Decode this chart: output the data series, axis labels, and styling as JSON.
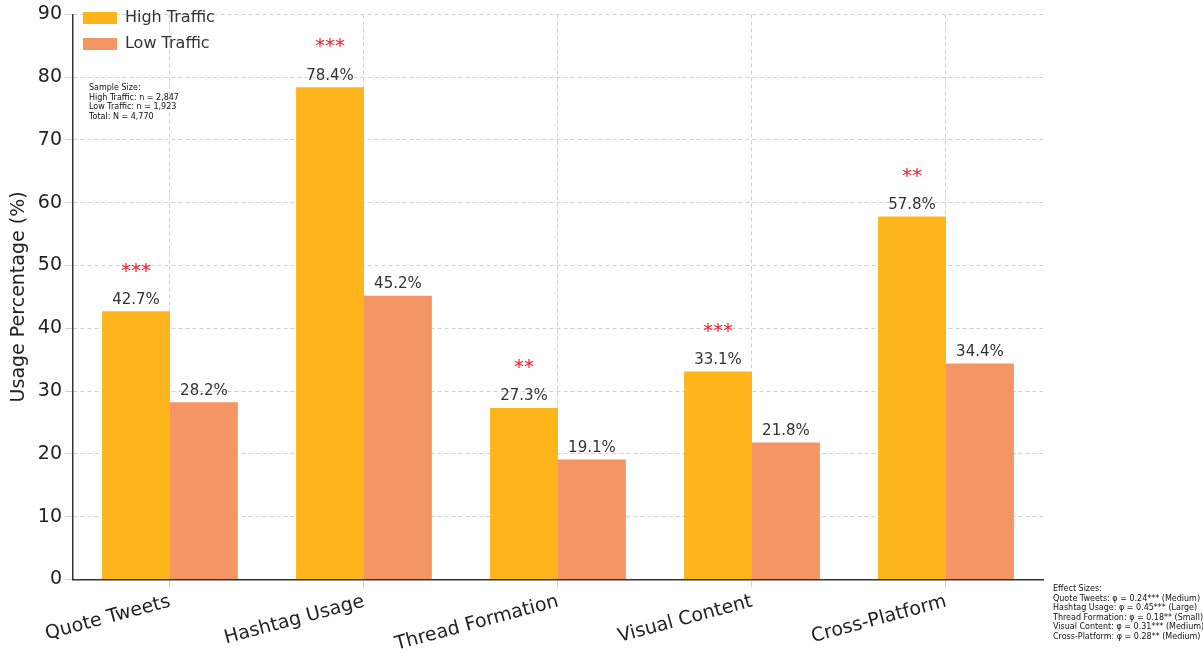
{
  "chart_data": {
    "type": "bar",
    "ylabel": "Usage Percentage (%)",
    "categories": [
      "Quote Tweets",
      "Hashtag Usage",
      "Thread Formation",
      "Visual Content",
      "Cross-Platform"
    ],
    "series": [
      {
        "name": "High Traffic",
        "color": "#fdb51b",
        "values": [
          42.7,
          78.4,
          27.3,
          33.1,
          57.8
        ],
        "value_labels": [
          "42.7%",
          "78.4%",
          "27.3%",
          "33.1%",
          "57.8%"
        ]
      },
      {
        "name": "Low Traffic",
        "color": "#f49663",
        "values": [
          28.2,
          45.2,
          19.1,
          21.8,
          34.4
        ],
        "value_labels": [
          "28.2%",
          "45.2%",
          "19.1%",
          "21.8%",
          "34.4%"
        ]
      }
    ],
    "ylim": [
      0,
      90
    ],
    "yticks": [
      0,
      10,
      20,
      30,
      40,
      50,
      60,
      70,
      80,
      90
    ],
    "grid": true,
    "legend": "top left",
    "annotations": [
      "***",
      "***",
      "**",
      "***",
      "**",
      "Sample Size:\nHigh Traffic: n = 2,847\nLow Traffic: n = 1,923\nTotal: N = 4,770",
      "Effect Sizes:\nQuote Tweets: φ = 0.24*** (Medium)\nHashtag Usage: φ = 0.45*** (Large)\nThread Formation: φ = 0.18** (Small)\nVisual Content: φ = 0.31*** (Medium)\nCross-Platform: φ = 0.28** (Medium)"
    ]
  }
}
